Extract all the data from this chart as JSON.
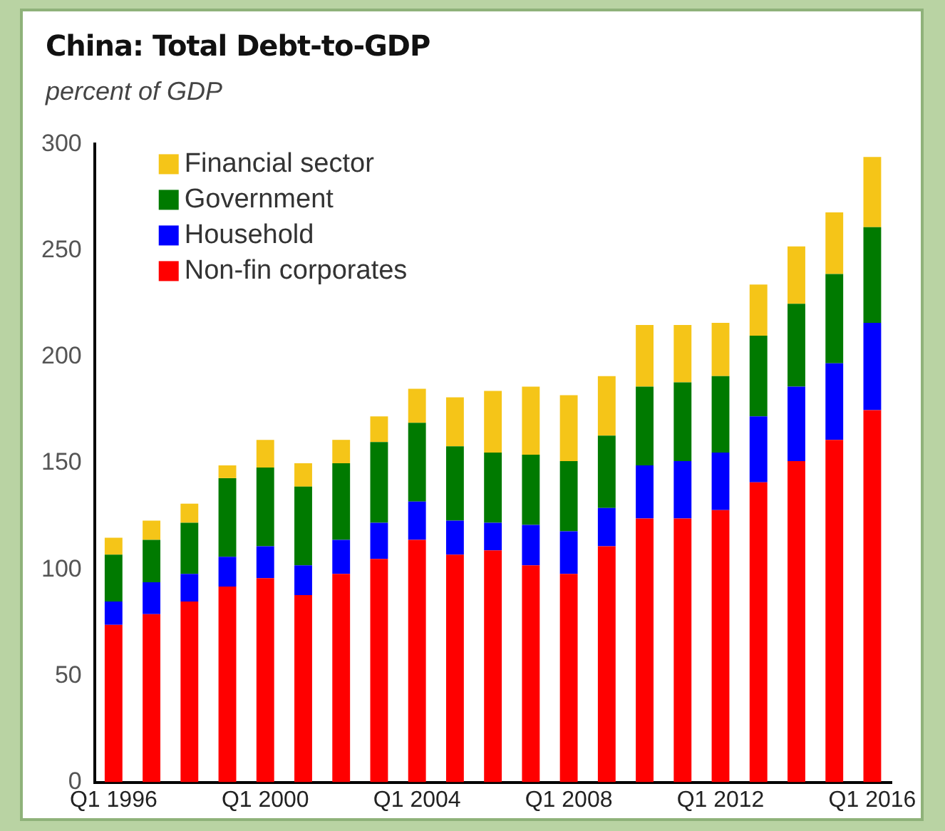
{
  "chart_data": {
    "type": "bar",
    "title": "China: Total Debt-to-GDP",
    "subtitle": "percent of GDP",
    "stacked": true,
    "categories": [
      "Q1 1996",
      null,
      null,
      null,
      "Q1 2000",
      null,
      null,
      null,
      "Q1 2004",
      null,
      null,
      null,
      "Q1 2008",
      null,
      null,
      null,
      "Q1 2012",
      null,
      null,
      null,
      "Q1 2016"
    ],
    "series": [
      {
        "name": "Non-fin corporates",
        "color": "#ff0000",
        "values": [
          74,
          79,
          85,
          92,
          96,
          88,
          98,
          105,
          114,
          107,
          109,
          102,
          98,
          111,
          124,
          124,
          128,
          141,
          151,
          161,
          175
        ]
      },
      {
        "name": "Household",
        "color": "#0000ff",
        "values": [
          11,
          15,
          13,
          14,
          15,
          14,
          16,
          17,
          18,
          16,
          13,
          19,
          20,
          18,
          25,
          27,
          27,
          31,
          35,
          36,
          41
        ]
      },
      {
        "name": "Government",
        "color": "#007a00",
        "values": [
          22,
          20,
          24,
          37,
          37,
          37,
          36,
          38,
          37,
          35,
          33,
          33,
          33,
          34,
          37,
          37,
          36,
          38,
          39,
          42,
          45
        ]
      },
      {
        "name": "Financial sector",
        "color": "#f5c518",
        "values": [
          8,
          9,
          9,
          6,
          13,
          11,
          11,
          12,
          16,
          23,
          29,
          32,
          31,
          28,
          29,
          27,
          25,
          24,
          27,
          29,
          33
        ]
      }
    ],
    "ylim": [
      0,
      300
    ],
    "yticks": [
      0,
      50,
      100,
      150,
      200,
      250,
      300
    ],
    "grid": false,
    "legend": "top left"
  }
}
